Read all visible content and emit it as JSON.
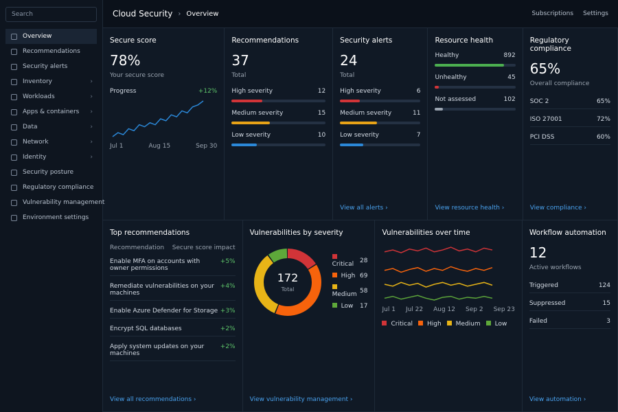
{
  "sidebar": {
    "search": "Search",
    "items": [
      "Overview",
      "Recommendations",
      "Security alerts",
      "Inventory",
      "Workloads",
      "Apps & containers",
      "Data",
      "Network",
      "Identity",
      "Security posture",
      "Regulatory compliance",
      "Vulnerability management",
      "Environment settings"
    ]
  },
  "header": {
    "breadcrumb": [
      "Cloud Security",
      "Overview"
    ],
    "actions": [
      "Subscriptions",
      "Settings"
    ]
  },
  "secure_score": {
    "title": "Secure score",
    "value": "78%",
    "subtitle": "Your secure score",
    "progress_label": "Progress",
    "change": "+12%",
    "x_labels": [
      "Jul 1",
      "Aug 15",
      "Sep 30"
    ],
    "trend": [
      60,
      62,
      61,
      64,
      63,
      66,
      65,
      67,
      66,
      69,
      68,
      71,
      70,
      73,
      72,
      75,
      76,
      78
    ]
  },
  "recommendations": {
    "title": "Recommendations",
    "total": 37,
    "total_label": "Total",
    "rows": [
      {
        "label": "High severity",
        "value": 12,
        "color": "#d13438"
      },
      {
        "label": "Medium severity",
        "value": 15,
        "color": "#e8a317"
      },
      {
        "label": "Low severity",
        "value": 10,
        "color": "#2b88d8"
      }
    ]
  },
  "security_alerts": {
    "title": "Security alerts",
    "total": 24,
    "total_label": "Total",
    "rows": [
      {
        "label": "High severity",
        "value": 6,
        "color": "#d13438"
      },
      {
        "label": "Medium severity",
        "value": 11,
        "color": "#e8a317"
      },
      {
        "label": "Low severity",
        "value": 7,
        "color": "#2b88d8"
      }
    ],
    "link": "View all alerts"
  },
  "resource_health": {
    "title": "Resource health",
    "rows": [
      {
        "label": "Healthy",
        "value": 892,
        "color": "#4caf50"
      },
      {
        "label": "Unhealthy",
        "value": 45,
        "color": "#d13438"
      },
      {
        "label": "Not assessed",
        "value": 102,
        "color": "#9aa4b0"
      }
    ],
    "link": "View resource health"
  },
  "regulatory_compliance": {
    "title": "Regulatory compliance",
    "value": "65%",
    "subtitle": "Overall compliance",
    "rows": [
      [
        "SOC 2",
        "65%"
      ],
      [
        "ISO 27001",
        "72%"
      ],
      [
        "PCI DSS",
        "60%"
      ]
    ],
    "link": "View compliance"
  },
  "top_recommendations": {
    "title": "Top recommendations",
    "columns": [
      "Recommendation",
      "Secure score impact"
    ],
    "rows": [
      [
        "Enable MFA on accounts with owner permissions",
        "+5%"
      ],
      [
        "Remediate vulnerabilities on your machines",
        "+4%"
      ],
      [
        "Enable Azure Defender for Storage",
        "+3%"
      ],
      [
        "Encrypt SQL databases",
        "+2%"
      ],
      [
        "Apply system updates on your machines",
        "+2%"
      ]
    ],
    "link": "View all recommendations"
  },
  "vulnerabilities_by_severity": {
    "title": "Vulnerabilities by severity",
    "total": 172,
    "total_label": "Total",
    "segments": [
      {
        "name": "Critical",
        "value": 28,
        "color": "#d13438"
      },
      {
        "name": "High",
        "value": 69,
        "color": "#f7630c"
      },
      {
        "name": "Medium",
        "value": 58,
        "color": "#e8b417"
      },
      {
        "name": "Low",
        "value": 17,
        "color": "#5ea83a"
      }
    ],
    "link": "View vulnerability management"
  },
  "vulnerabilities_over_time": {
    "title": "Vulnerabilities over time",
    "x_labels": [
      "Jul 1",
      "Jul 22",
      "Aug 12",
      "Sep 2",
      "Sep 23"
    ],
    "series": [
      {
        "name": "Critical",
        "color": "#d13438",
        "values": [
          80,
          82,
          79,
          83,
          81,
          84,
          80,
          82,
          85,
          81,
          83,
          80,
          84,
          82
        ]
      },
      {
        "name": "High",
        "color": "#f7630c",
        "values": [
          60,
          62,
          58,
          61,
          63,
          59,
          62,
          60,
          64,
          61,
          59,
          62,
          60,
          63
        ]
      },
      {
        "name": "Medium",
        "color": "#e8b417",
        "values": [
          45,
          43,
          47,
          44,
          46,
          42,
          45,
          47,
          44,
          46,
          43,
          45,
          47,
          44
        ]
      },
      {
        "name": "Low",
        "color": "#5ea83a",
        "values": [
          30,
          32,
          29,
          31,
          33,
          30,
          28,
          31,
          32,
          29,
          31,
          30,
          32,
          30
        ]
      }
    ]
  },
  "workflow_automation": {
    "title": "Workflow automation",
    "total": 12,
    "total_label": "Active workflows",
    "rows": [
      [
        "Triggered",
        124
      ],
      [
        "Suppressed",
        15
      ],
      [
        "Failed",
        3
      ]
    ],
    "link": "View automation"
  }
}
